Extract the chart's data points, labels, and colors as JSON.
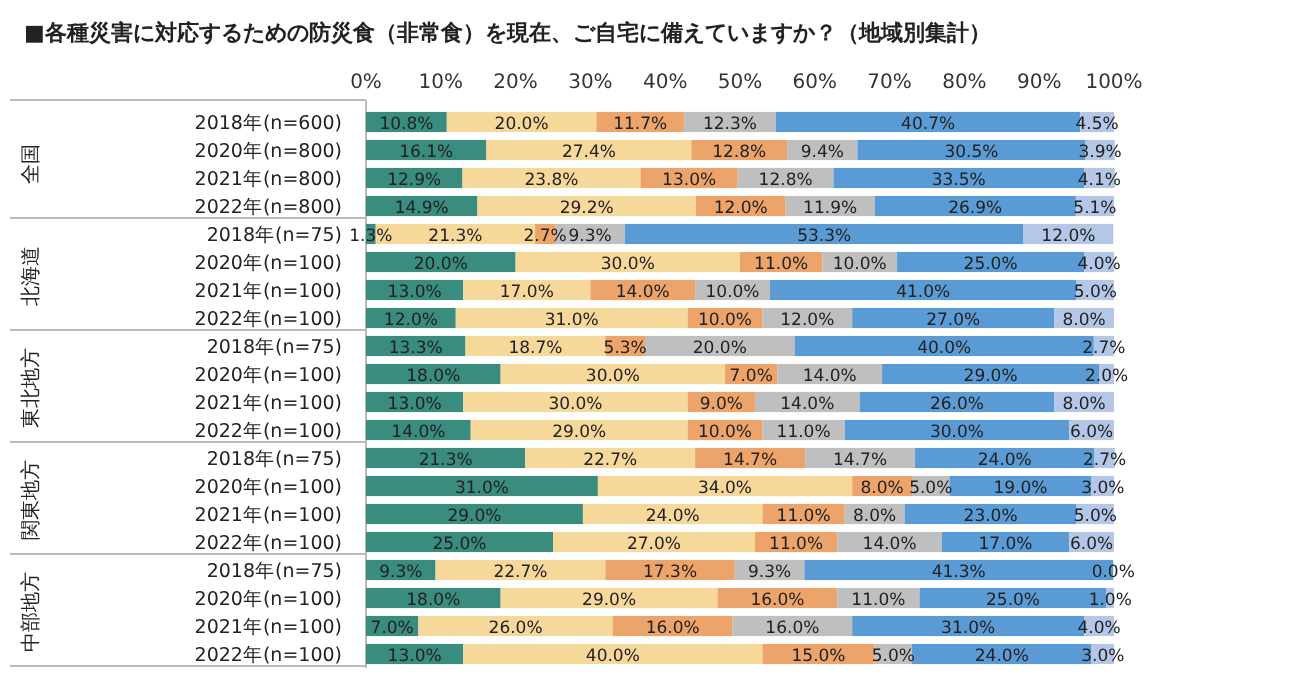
{
  "chart_data": {
    "type": "bar",
    "orientation": "horizontal",
    "stacked": true,
    "title": "■各種災害に対応するための防災食（非常食）を現在、ご自宅に備えていますか？（地域別集計）",
    "categories": [
      "2018年(n=600)",
      "2020年(n=800)",
      "2021年(n=800)",
      "2022年(n=800)",
      "2018年(n=75)",
      "2020年(n=100)",
      "2021年(n=100)",
      "2022年(n=100)",
      "2018年(n=75)",
      "2020年(n=100)",
      "2021年(n=100)",
      "2022年(n=100)",
      "2018年(n=75)",
      "2020年(n=100)",
      "2021年(n=100)",
      "2022年(n=100)",
      "2018年(n=75)",
      "2020年(n=100)",
      "2021年(n=100)",
      "2022年(n=100)"
    ],
    "annotations": [
      "全国",
      "北海道",
      "東北地方",
      "関東地方",
      "中部地方"
    ],
    "xlim": [
      0,
      100
    ],
    "xticks": [
      {
        "value": 0,
        "label": "0%"
      },
      {
        "value": 10,
        "label": "10%"
      },
      {
        "value": 20,
        "label": "20%"
      },
      {
        "value": 30,
        "label": "30%"
      },
      {
        "value": 40,
        "label": "40%"
      },
      {
        "value": 50,
        "label": "50%"
      },
      {
        "value": 60,
        "label": "60%"
      },
      {
        "value": 70,
        "label": "70%"
      },
      {
        "value": 80,
        "label": "80%"
      },
      {
        "value": 90,
        "label": "90%"
      },
      {
        "value": 100,
        "label": "100%"
      }
    ],
    "series": [
      {
        "color": "#3a8c7e",
        "values": [
          10.8,
          16.1,
          12.9,
          14.9,
          1.3,
          20.0,
          13.0,
          12.0,
          13.3,
          18.0,
          13.0,
          14.0,
          21.3,
          31.0,
          29.0,
          25.0,
          9.3,
          18.0,
          7.0,
          13.0
        ],
        "value_labels": [
          "10.8%",
          "16.1%",
          "12.9%",
          "14.9%",
          "1.3%",
          "20.0%",
          "13.0%",
          "12.0%",
          "13.3%",
          "18.0%",
          "13.0%",
          "14.0%",
          "21.3%",
          "31.0%",
          "29.0%",
          "25.0%",
          "9.3%",
          "18.0%",
          "7.0%",
          "13.0%"
        ]
      },
      {
        "color": "#f7d89b",
        "values": [
          20.0,
          27.4,
          23.8,
          29.2,
          21.3,
          30.0,
          17.0,
          31.0,
          18.7,
          30.0,
          30.0,
          29.0,
          22.7,
          34.0,
          24.0,
          27.0,
          22.7,
          29.0,
          26.0,
          40.0
        ],
        "value_labels": [
          "20.0%",
          "27.4%",
          "23.8%",
          "29.2%",
          "21.3%",
          "30.0%",
          "17.0%",
          "31.0%",
          "18.7%",
          "30.0%",
          "30.0%",
          "29.0%",
          "22.7%",
          "34.0%",
          "24.0%",
          "27.0%",
          "22.7%",
          "29.0%",
          "26.0%",
          "40.0%"
        ]
      },
      {
        "color": "#eda46a",
        "values": [
          11.7,
          12.8,
          13.0,
          12.0,
          2.7,
          11.0,
          14.0,
          10.0,
          5.3,
          7.0,
          9.0,
          10.0,
          14.7,
          8.0,
          11.0,
          11.0,
          17.3,
          16.0,
          16.0,
          15.0
        ],
        "value_labels": [
          "11.7%",
          "12.8%",
          "13.0%",
          "12.0%",
          "2.7%",
          "11.0%",
          "14.0%",
          "10.0%",
          "5.3%",
          "7.0%",
          "9.0%",
          "10.0%",
          "14.7%",
          "8.0%",
          "11.0%",
          "11.0%",
          "17.3%",
          "16.0%",
          "16.0%",
          "15.0%"
        ]
      },
      {
        "color": "#bfbfbf",
        "values": [
          12.3,
          9.4,
          12.8,
          11.9,
          9.3,
          10.0,
          10.0,
          12.0,
          20.0,
          14.0,
          14.0,
          11.0,
          14.7,
          5.0,
          8.0,
          14.0,
          9.3,
          11.0,
          16.0,
          5.0
        ],
        "value_labels": [
          "12.3%",
          "9.4%",
          "12.8%",
          "11.9%",
          "9.3%",
          "10.0%",
          "10.0%",
          "12.0%",
          "20.0%",
          "14.0%",
          "14.0%",
          "11.0%",
          "14.7%",
          "5.0%",
          "8.0%",
          "14.0%",
          "9.3%",
          "11.0%",
          "16.0%",
          "5.0%"
        ]
      },
      {
        "color": "#5b9bd5",
        "values": [
          40.7,
          30.5,
          33.5,
          26.9,
          53.3,
          25.0,
          41.0,
          27.0,
          40.0,
          29.0,
          26.0,
          30.0,
          24.0,
          19.0,
          23.0,
          17.0,
          41.3,
          25.0,
          31.0,
          24.0
        ],
        "value_labels": [
          "40.7%",
          "30.5%",
          "33.5%",
          "26.9%",
          "53.3%",
          "25.0%",
          "41.0%",
          "27.0%",
          "40.0%",
          "29.0%",
          "26.0%",
          "30.0%",
          "24.0%",
          "19.0%",
          "23.0%",
          "17.0%",
          "41.3%",
          "25.0%",
          "31.0%",
          "24.0%"
        ]
      },
      {
        "color": "#b4c7e7",
        "values": [
          4.5,
          3.9,
          4.1,
          5.1,
          12.0,
          4.0,
          5.0,
          8.0,
          2.7,
          2.0,
          8.0,
          6.0,
          2.7,
          3.0,
          5.0,
          6.0,
          0.0,
          1.0,
          4.0,
          3.0
        ],
        "value_labels": [
          "4.5%",
          "3.9%",
          "4.1%",
          "5.1%",
          "12.0%",
          "4.0%",
          "5.0%",
          "8.0%",
          "2.7%",
          "2.0%",
          "8.0%",
          "6.0%",
          "2.7%",
          "3.0%",
          "5.0%",
          "6.0%",
          "0.0%",
          "1.0%",
          "4.0%",
          "3.0%"
        ]
      }
    ]
  }
}
